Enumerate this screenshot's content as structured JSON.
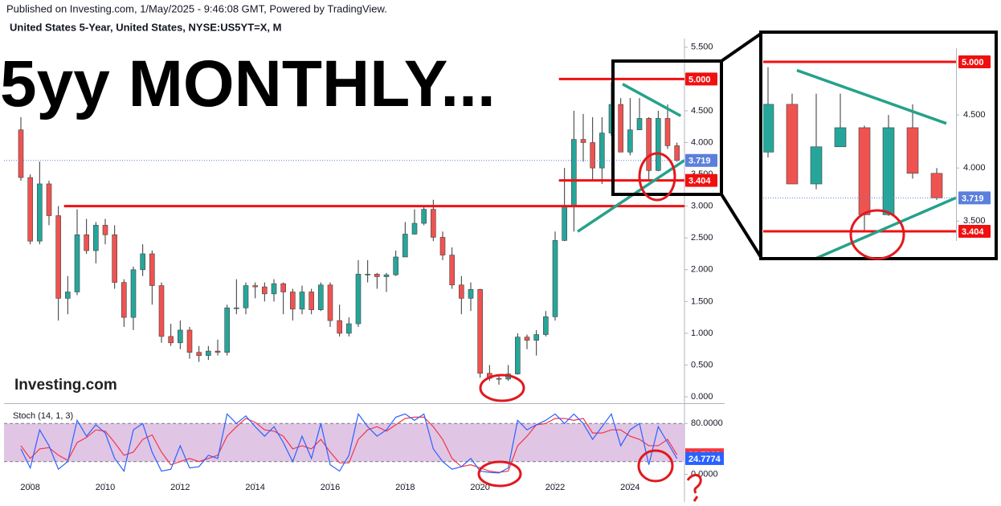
{
  "chart_data": [
    {
      "type": "candlestick",
      "published": "Published on Investing.com, 1/May/2025 - 9:46:08 GMT, Powered by TradingView.",
      "symbol": "United States 5-Year, United States, NYSE:US5YT=X, M",
      "title": "5yy MONTHLY...",
      "logo": "Investing.com",
      "up_color": "#26a69a",
      "down_color": "#ef5350",
      "x": [
        2007.75,
        2008,
        2008.25,
        2008.5,
        2008.75,
        2009,
        2009.25,
        2009.5,
        2009.75,
        2010,
        2010.25,
        2010.5,
        2010.75,
        2011,
        2011.25,
        2011.5,
        2011.75,
        2012,
        2012.25,
        2012.5,
        2012.75,
        2013,
        2013.25,
        2013.5,
        2013.75,
        2014,
        2014.25,
        2014.5,
        2014.75,
        2015,
        2015.25,
        2015.5,
        2015.75,
        2016,
        2016.25,
        2016.5,
        2016.75,
        2017,
        2017.25,
        2017.5,
        2017.75,
        2018,
        2018.25,
        2018.5,
        2018.75,
        2019,
        2019.25,
        2019.5,
        2019.75,
        2020,
        2020.25,
        2020.5,
        2020.75,
        2021,
        2021.25,
        2021.5,
        2021.75,
        2022,
        2022.25,
        2022.5,
        2022.75,
        2023,
        2023.25,
        2023.5,
        2023.75,
        2024,
        2024.25,
        2024.5,
        2024.75,
        2025,
        2025.25
      ],
      "open": [
        4.2,
        3.45,
        2.45,
        3.35,
        2.85,
        1.55,
        1.65,
        2.55,
        2.3,
        2.7,
        2.55,
        1.8,
        1.25,
        2.0,
        2.25,
        1.75,
        0.95,
        0.85,
        1.05,
        0.7,
        0.65,
        0.72,
        0.7,
        1.4,
        1.4,
        1.75,
        1.73,
        1.62,
        1.78,
        1.65,
        1.38,
        1.65,
        1.37,
        1.76,
        1.2,
        1.0,
        1.15,
        1.93,
        1.93,
        1.89,
        1.92,
        2.2,
        2.56,
        2.73,
        2.95,
        2.51,
        2.23,
        1.76,
        1.55,
        1.69,
        0.37,
        0.29,
        0.28,
        0.36,
        0.94,
        0.89,
        0.98,
        1.26,
        2.46,
        3.01,
        4.05,
        4.0,
        3.6,
        4.15,
        4.6,
        3.85,
        4.2,
        4.38,
        3.56,
        4.38,
        3.95
      ],
      "high": [
        4.4,
        3.5,
        3.7,
        3.4,
        3.0,
        1.9,
        2.95,
        2.8,
        2.75,
        2.8,
        2.7,
        1.85,
        2.05,
        2.4,
        2.3,
        1.8,
        1.15,
        1.2,
        1.1,
        0.8,
        0.8,
        0.9,
        1.45,
        1.85,
        1.8,
        1.8,
        1.8,
        1.85,
        1.8,
        1.7,
        1.75,
        1.7,
        1.8,
        1.8,
        1.45,
        1.25,
        2.15,
        2.15,
        1.95,
        1.95,
        2.3,
        2.75,
        2.95,
        3.0,
        3.1,
        2.6,
        2.35,
        1.9,
        1.8,
        1.7,
        0.5,
        0.35,
        0.5,
        1.0,
        0.98,
        1.05,
        1.35,
        2.6,
        3.6,
        4.5,
        4.45,
        4.4,
        4.4,
        4.95,
        4.7,
        4.7,
        4.7,
        4.4,
        4.5,
        4.6,
        4.0
      ],
      "low": [
        3.4,
        2.4,
        2.4,
        2.7,
        1.2,
        1.3,
        1.6,
        2.25,
        2.1,
        2.4,
        1.7,
        1.1,
        1.05,
        1.9,
        1.45,
        0.85,
        0.8,
        0.75,
        0.6,
        0.55,
        0.58,
        0.65,
        0.65,
        1.3,
        1.3,
        1.55,
        1.5,
        1.5,
        1.3,
        1.2,
        1.3,
        1.3,
        1.35,
        1.1,
        0.95,
        0.95,
        1.1,
        1.8,
        1.7,
        1.65,
        1.9,
        2.2,
        2.55,
        2.7,
        2.45,
        2.15,
        1.7,
        1.3,
        1.35,
        0.3,
        0.25,
        0.19,
        0.25,
        0.35,
        0.75,
        0.65,
        0.95,
        1.2,
        2.45,
        2.6,
        3.7,
        3.4,
        3.35,
        4.1,
        3.9,
        3.8,
        4.2,
        3.4,
        3.55,
        3.9,
        3.7
      ],
      "close": [
        3.45,
        2.45,
        3.35,
        2.85,
        1.55,
        1.65,
        2.55,
        2.3,
        2.7,
        2.55,
        1.8,
        1.25,
        2.0,
        2.25,
        1.75,
        0.95,
        0.85,
        1.05,
        0.7,
        0.65,
        0.72,
        0.7,
        1.4,
        1.4,
        1.75,
        1.73,
        1.62,
        1.78,
        1.65,
        1.38,
        1.65,
        1.37,
        1.76,
        1.2,
        1.0,
        1.15,
        1.93,
        1.93,
        1.89,
        1.92,
        2.2,
        2.56,
        2.73,
        2.95,
        2.51,
        2.23,
        1.76,
        1.55,
        1.69,
        0.37,
        0.29,
        0.28,
        0.36,
        0.94,
        0.89,
        0.98,
        1.26,
        2.46,
        3.01,
        4.05,
        4.0,
        3.6,
        4.15,
        4.6,
        3.85,
        4.2,
        4.38,
        3.56,
        4.38,
        3.95,
        3.719
      ],
      "xlim": [
        2007.3,
        2025.45
      ],
      "ylim": [
        -0.1,
        5.75
      ],
      "yticks": [
        {
          "value": 5.5,
          "label": "5.500"
        },
        {
          "value": 5,
          "label": "5.000"
        },
        {
          "value": 4.5,
          "label": "4.500"
        },
        {
          "value": 4,
          "label": "4.000"
        },
        {
          "value": 3.5,
          "label": "3.500"
        },
        {
          "value": 3,
          "label": "3.000"
        },
        {
          "value": 2.5,
          "label": "2.500"
        },
        {
          "value": 2,
          "label": "2.000"
        },
        {
          "value": 1.5,
          "label": "1.500"
        },
        {
          "value": 1,
          "label": "1.000"
        },
        {
          "value": 0.5,
          "label": "0.500"
        },
        {
          "value": 0,
          "label": "0.000"
        }
      ],
      "last_price": 3.719,
      "last_color": "#5b7fdc",
      "levels": [
        {
          "value": 5,
          "label": "5.000",
          "from": 2022.1,
          "color": "#f01010"
        },
        {
          "value": 3.404,
          "label": "3.404",
          "from": 2022.1,
          "color": "#f01010"
        },
        {
          "value": 3,
          "from": 2008.9,
          "color": "#f01010"
        }
      ],
      "trendlines": [
        {
          "x": [
            2023.8,
            2025.35
          ],
          "y": [
            4.92,
            4.42
          ],
          "color": "#26a18a"
        },
        {
          "x": [
            2022.6,
            2025.45
          ],
          "y": [
            2.6,
            3.72
          ],
          "color": "#26a18a"
        }
      ],
      "inset": {
        "xlim": [
          2023.45,
          2025.45
        ],
        "ylim": [
          3.177,
          5.242
        ],
        "yticks": [
          {
            "value": 4.5,
            "label": "4.500"
          },
          {
            "value": 4,
            "label": "4.000"
          },
          {
            "value": 3.5,
            "label": "3.500"
          }
        ]
      }
    },
    {
      "type": "line",
      "title": "Stoch (14, 1, 3)",
      "x": [
        2007.75,
        2008,
        2008.25,
        2008.5,
        2008.75,
        2009,
        2009.25,
        2009.5,
        2009.75,
        2010,
        2010.25,
        2010.5,
        2010.75,
        2011,
        2011.25,
        2011.5,
        2011.75,
        2012,
        2012.25,
        2012.5,
        2012.75,
        2013,
        2013.25,
        2013.5,
        2013.75,
        2014,
        2014.25,
        2014.5,
        2014.75,
        2015,
        2015.25,
        2015.5,
        2015.75,
        2016,
        2016.25,
        2016.5,
        2016.75,
        2017,
        2017.25,
        2017.5,
        2017.75,
        2018,
        2018.25,
        2018.5,
        2018.75,
        2019,
        2019.25,
        2019.5,
        2019.75,
        2020,
        2020.25,
        2020.5,
        2020.75,
        2021,
        2021.25,
        2021.5,
        2021.75,
        2022,
        2022.25,
        2022.5,
        2022.75,
        2023,
        2023.25,
        2023.5,
        2023.75,
        2024,
        2024.25,
        2024.5,
        2024.75,
        2025,
        2025.25
      ],
      "series": [
        {
          "color": "#f23645",
          "values": [
            45,
            25,
            40,
            42,
            30,
            22,
            50,
            58,
            70,
            68,
            50,
            30,
            35,
            55,
            62,
            35,
            15,
            20,
            25,
            20,
            25,
            30,
            60,
            75,
            88,
            82,
            70,
            68,
            60,
            40,
            45,
            40,
            55,
            35,
            18,
            18,
            55,
            70,
            75,
            68,
            78,
            88,
            90,
            90,
            75,
            55,
            25,
            12,
            15,
            10,
            5,
            3,
            5,
            45,
            60,
            78,
            80,
            88,
            88,
            85,
            88,
            65,
            65,
            70,
            70,
            60,
            55,
            45,
            45,
            55,
            30.7812
          ]
        },
        {
          "color": "#2962ff",
          "values": [
            40,
            10,
            70,
            45,
            8,
            20,
            85,
            60,
            78,
            65,
            25,
            5,
            70,
            80,
            35,
            5,
            8,
            45,
            10,
            12,
            30,
            25,
            95,
            80,
            92,
            75,
            60,
            75,
            50,
            20,
            60,
            25,
            80,
            15,
            5,
            30,
            95,
            75,
            60,
            70,
            90,
            95,
            85,
            95,
            40,
            20,
            8,
            12,
            25,
            5,
            3,
            2,
            10,
            85,
            70,
            78,
            85,
            95,
            80,
            95,
            80,
            55,
            75,
            95,
            45,
            70,
            80,
            15,
            75,
            50,
            24.7774
          ]
        }
      ],
      "band": [
        20,
        80
      ],
      "band_color": "#d9b6df",
      "xlim": [
        2007.3,
        2025.45
      ],
      "xticks": [
        2008,
        2010,
        2012,
        2014,
        2016,
        2018,
        2020,
        2022,
        2024
      ],
      "ylim": [
        -12,
        112
      ],
      "yticks": [
        {
          "value": 80,
          "label": "80.0000"
        },
        {
          "value": 0,
          "label": "0.0000"
        }
      ]
    }
  ]
}
